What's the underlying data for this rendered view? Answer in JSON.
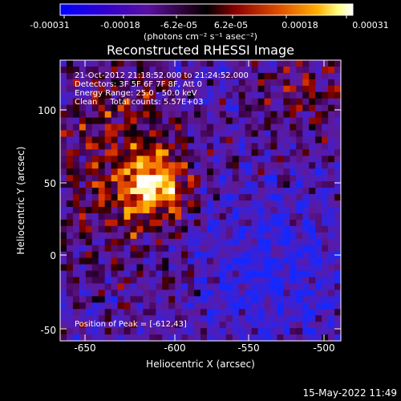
{
  "colorbar": {
    "ticks": [
      "-0.00031",
      "-0.00018",
      "-6.2e-05",
      "6.2e-05",
      "0.00018",
      "0.00031"
    ],
    "unit_text": "(photons cm⁻² s⁻¹ asec⁻²)",
    "stops": [
      "#0000ff",
      "#4b00b4",
      "#7a1a8a",
      "#000000",
      "#8b0000",
      "#e05000",
      "#ffa500",
      "#ffff80",
      "#ffffff"
    ]
  },
  "title": "Reconstructed RHESSI Image",
  "info": {
    "time_range": "21-Oct-2012 21:18:52.000 to 21:24:52.000",
    "detectors": "Detectors: 3F 5F 6F 7F 8F, Att 0",
    "energy": "Energy Range: 25.0 - 50.0 keV",
    "clean": "Clean     Total counts: 5.57E+03",
    "peak": "Position of Peak = [-612,43]"
  },
  "axes": {
    "xlabel": "Heliocentric X (arcsec)",
    "ylabel": "Heliocentric Y (arcsec)",
    "xticks": [
      "-650",
      "-600",
      "-550",
      "-500"
    ],
    "yticks": [
      "-50",
      "0",
      "50",
      "100"
    ],
    "xlim": [
      -675,
      -484
    ],
    "ylim": [
      -57,
      133
    ]
  },
  "footer": {
    "timestamp": "15-May-2022 11:49"
  }
}
